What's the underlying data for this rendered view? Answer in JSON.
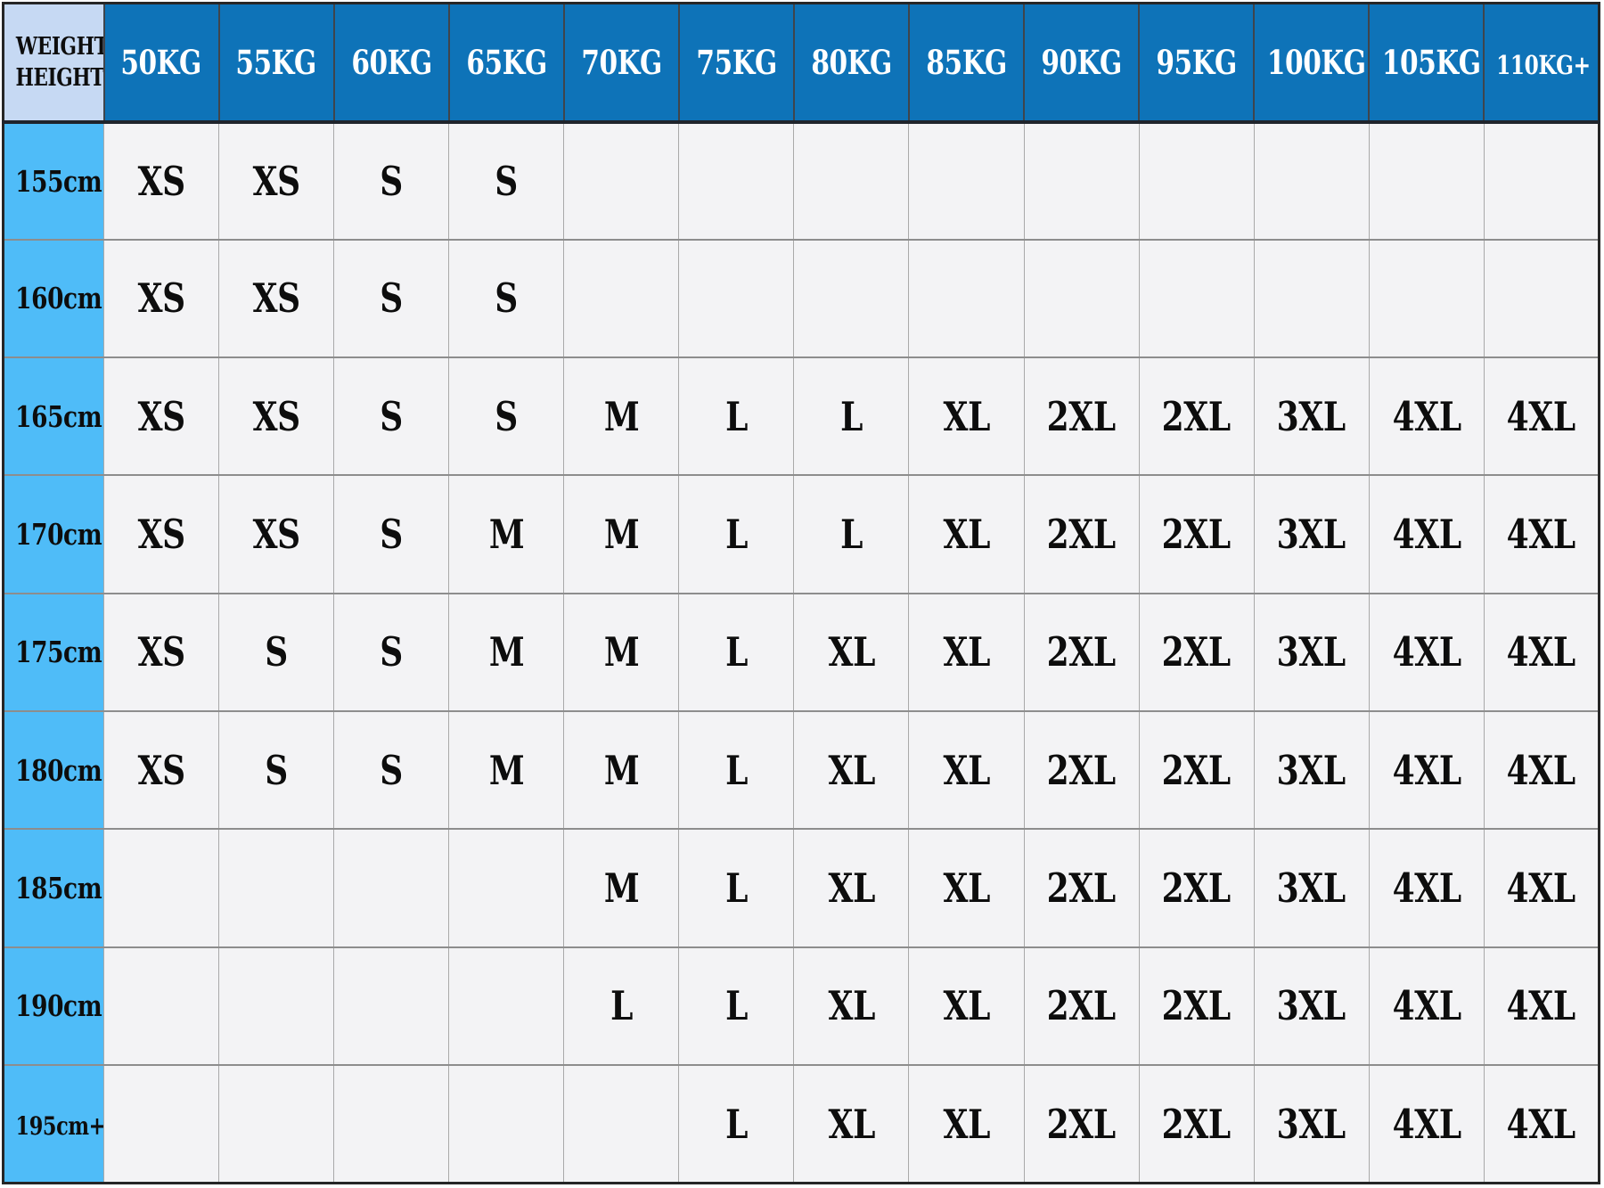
{
  "chart_data": {
    "type": "table",
    "corner_label_lines": [
      "WEIGHT",
      "HEIGHT"
    ],
    "columns": [
      "50KG",
      "55KG",
      "60KG",
      "65KG",
      "70KG",
      "75KG",
      "80KG",
      "85KG",
      "90KG",
      "95KG",
      "100KG",
      "105KG",
      "110KG+"
    ],
    "rows": [
      {
        "height_label": "155cm",
        "sizes": [
          "XS",
          "XS",
          "S",
          "S",
          "",
          "",
          "",
          "",
          "",
          "",
          "",
          "",
          ""
        ]
      },
      {
        "height_label": "160cm",
        "sizes": [
          "XS",
          "XS",
          "S",
          "S",
          "",
          "",
          "",
          "",
          "",
          "",
          "",
          "",
          ""
        ]
      },
      {
        "height_label": "165cm",
        "sizes": [
          "XS",
          "XS",
          "S",
          "S",
          "M",
          "L",
          "L",
          "XL",
          "2XL",
          "2XL",
          "3XL",
          "4XL",
          "4XL"
        ]
      },
      {
        "height_label": "170cm",
        "sizes": [
          "XS",
          "XS",
          "S",
          "M",
          "M",
          "L",
          "L",
          "XL",
          "2XL",
          "2XL",
          "3XL",
          "4XL",
          "4XL"
        ]
      },
      {
        "height_label": "175cm",
        "sizes": [
          "XS",
          "S",
          "S",
          "M",
          "M",
          "L",
          "XL",
          "XL",
          "2XL",
          "2XL",
          "3XL",
          "4XL",
          "4XL"
        ]
      },
      {
        "height_label": "180cm",
        "sizes": [
          "XS",
          "S",
          "S",
          "M",
          "M",
          "L",
          "XL",
          "XL",
          "2XL",
          "2XL",
          "3XL",
          "4XL",
          "4XL"
        ]
      },
      {
        "height_label": "185cm",
        "sizes": [
          "",
          "",
          "",
          "",
          "M",
          "L",
          "XL",
          "XL",
          "2XL",
          "2XL",
          "3XL",
          "4XL",
          "4XL"
        ]
      },
      {
        "height_label": "190cm",
        "sizes": [
          "",
          "",
          "",
          "",
          "L",
          "L",
          "XL",
          "XL",
          "2XL",
          "2XL",
          "3XL",
          "4XL",
          "4XL"
        ]
      },
      {
        "height_label": "195cm+",
        "sizes": [
          "",
          "",
          "",
          "",
          "",
          "L",
          "XL",
          "XL",
          "2XL",
          "2XL",
          "3XL",
          "4XL",
          "4XL"
        ]
      }
    ]
  },
  "colors": {
    "header_bg": "#0e73b8",
    "row_header_bg": "#4fbcf8",
    "corner_bg": "#c6d9f3",
    "body_bg": "#f3f3f5",
    "header_text": "#ffffff",
    "cell_text": "#0d0d0d",
    "grid_v": "#a9a9a9",
    "grid_h": "#8d8d8d",
    "header_grid": "#3f454c",
    "header_divider": "#1f242c",
    "outer_border": "#262626"
  }
}
